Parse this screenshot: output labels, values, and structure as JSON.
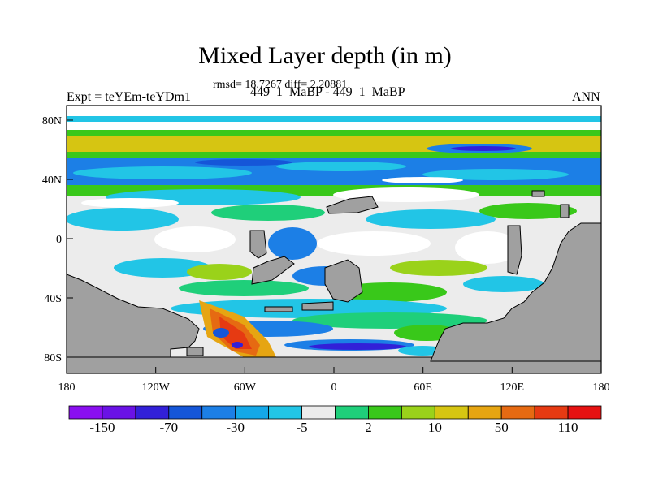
{
  "title": "Mixed Layer depth (in m)",
  "stats": "rmsd= 18.7267 diff= 2.20881",
  "expt_label": "Expt = teYEm-teYDm1",
  "subtitle": "449_1_MaBP - 449_1_MaBP",
  "season": "ANN",
  "x_ticks": [
    "180",
    "120W",
    "60W",
    "0",
    "60E",
    "120E",
    "180"
  ],
  "y_ticks": [
    "80N",
    "40N",
    "0",
    "40S",
    "80S"
  ],
  "colorbar": {
    "colors": [
      "#8a0ff0",
      "#6a12e6",
      "#3220d8",
      "#1556d8",
      "#1c7fe6",
      "#14a8e8",
      "#22c5e6",
      "#ececec",
      "#1fcf7a",
      "#39c81a",
      "#9ad21a",
      "#d6c512",
      "#e6a512",
      "#e66a12",
      "#e63a12",
      "#e61212"
    ],
    "labels": [
      "-150",
      "-70",
      "-30",
      "-5",
      "2",
      "10",
      "50",
      "110"
    ]
  },
  "land_color": "#a0a0a0"
}
